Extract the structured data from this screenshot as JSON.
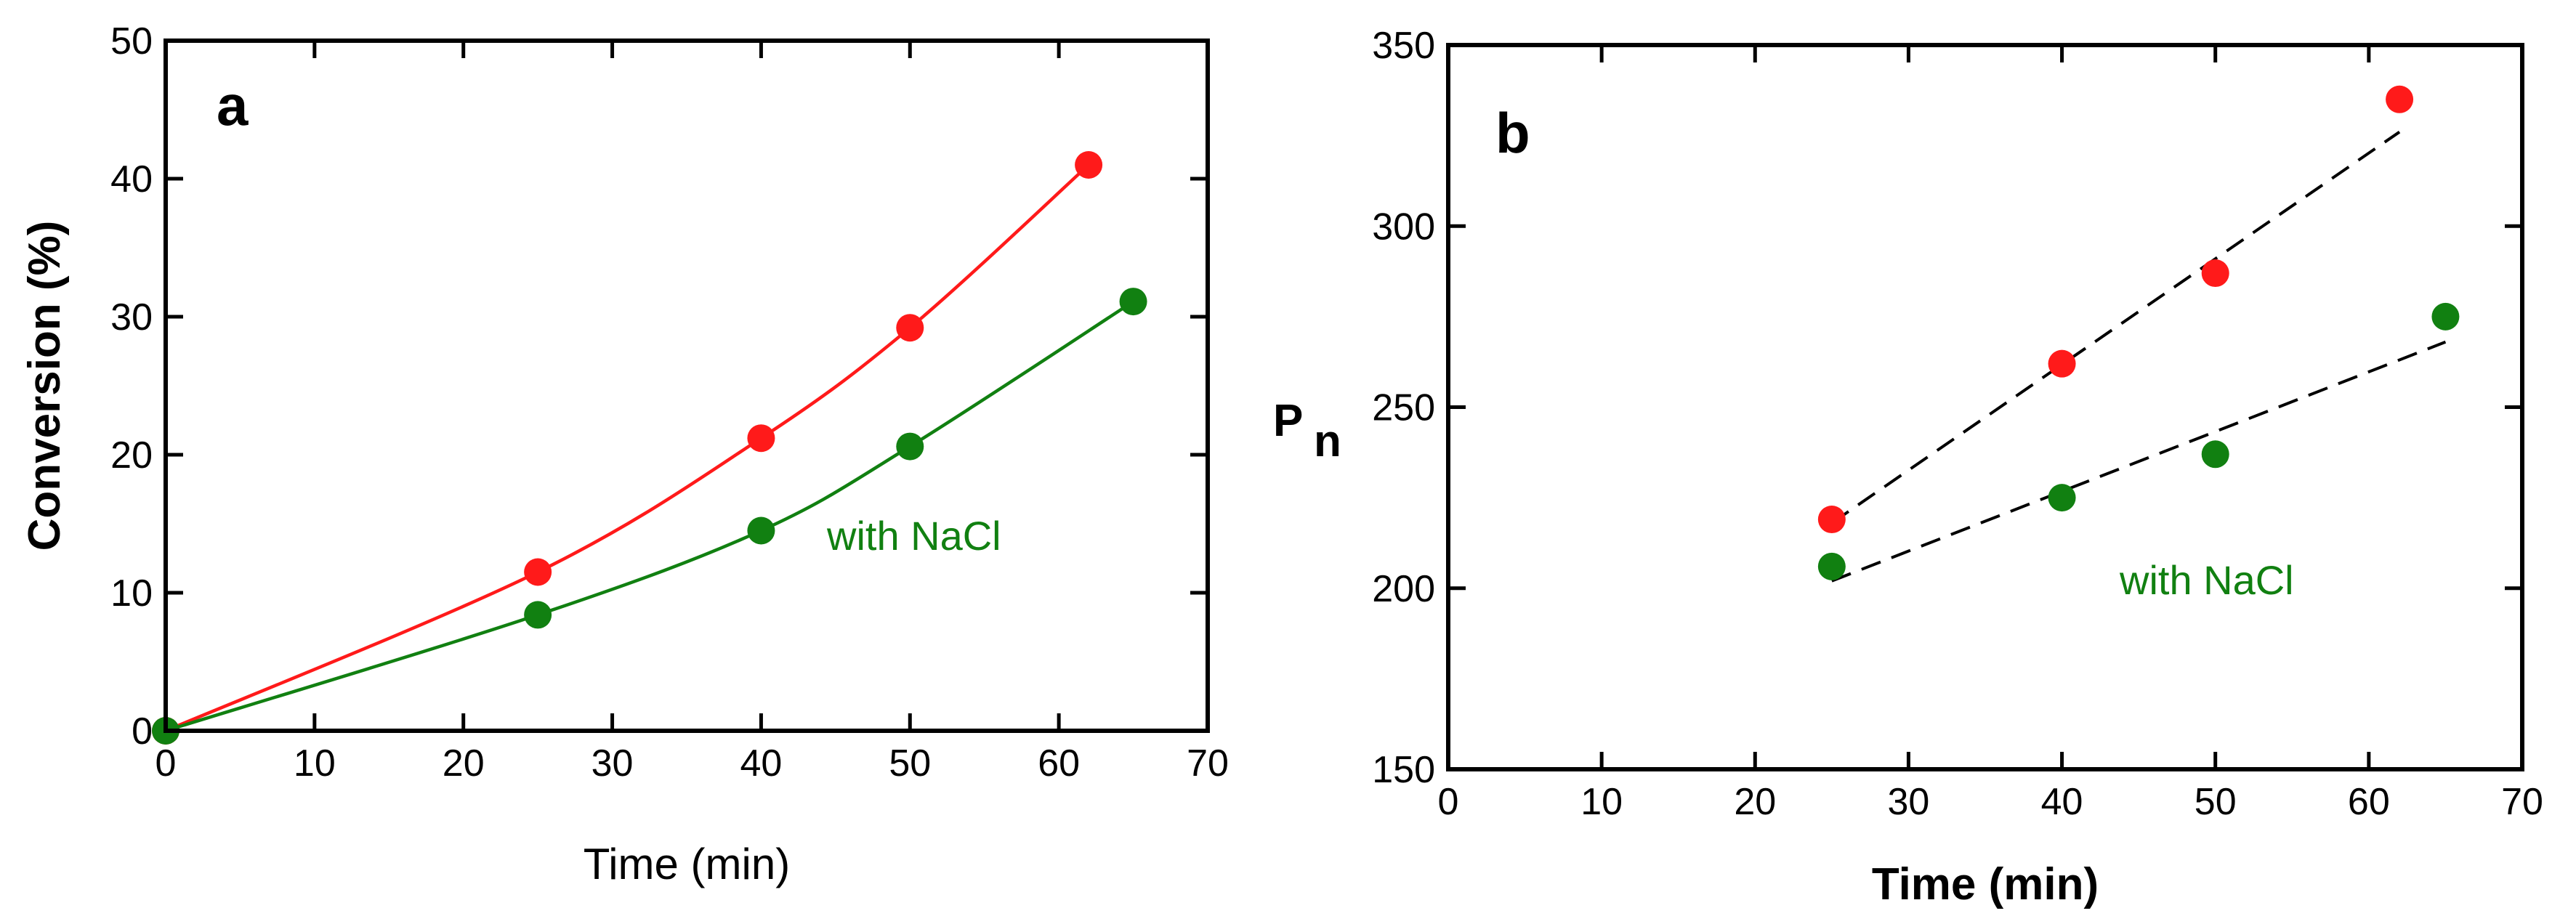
{
  "chart_data": [
    {
      "type": "line",
      "panel_label": "a",
      "xlabel": "Time (min)",
      "ylabel": "Conversion (%)",
      "xlim": [
        0,
        70
      ],
      "ylim": [
        0,
        50
      ],
      "xticks": [
        0,
        10,
        20,
        30,
        40,
        50,
        60,
        70
      ],
      "yticks": [
        0,
        10,
        20,
        30,
        40,
        50
      ],
      "grid": false,
      "annotation": {
        "text": "with NaCl",
        "color": "#118011"
      },
      "series": [
        {
          "name": "red",
          "color": "#ff1a1a",
          "x": [
            0,
            25,
            40,
            50,
            62
          ],
          "y": [
            0,
            11.5,
            21.2,
            29.2,
            41.0
          ]
        },
        {
          "name": "with NaCl",
          "color": "#118011",
          "x": [
            0,
            25,
            40,
            50,
            65
          ],
          "y": [
            0,
            8.4,
            14.5,
            20.6,
            31.1
          ]
        }
      ]
    },
    {
      "type": "scatter",
      "panel_label": "b",
      "xlabel": "Time (min)",
      "ylabel": "P",
      "ylabel_subscript": "n",
      "xlim": [
        0,
        70
      ],
      "ylim": [
        150,
        350
      ],
      "xticks": [
        0,
        10,
        20,
        30,
        40,
        50,
        60,
        70
      ],
      "yticks": [
        150,
        200,
        250,
        300,
        350
      ],
      "grid": false,
      "annotation": {
        "text": "with NaCl",
        "color": "#118011"
      },
      "series": [
        {
          "name": "red",
          "color": "#ff1a1a",
          "x": [
            25,
            40,
            50,
            62
          ],
          "y": [
            219,
            262,
            287,
            335
          ],
          "fit": {
            "x": [
              25,
              62
            ],
            "y": [
              218,
              326
            ]
          }
        },
        {
          "name": "with NaCl",
          "color": "#118011",
          "x": [
            25,
            40,
            50,
            65
          ],
          "y": [
            206,
            225,
            237,
            275
          ],
          "fit": {
            "x": [
              25,
              65
            ],
            "y": [
              202,
              268
            ]
          }
        }
      ]
    }
  ]
}
